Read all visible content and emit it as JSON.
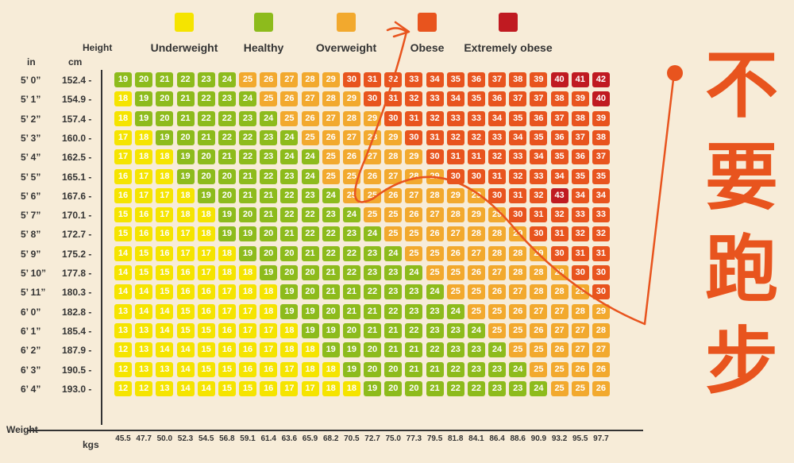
{
  "legend": [
    {
      "label": "Underweight",
      "color": "#f5e400"
    },
    {
      "label": "Healthy",
      "color": "#8dbb1c"
    },
    {
      "label": "Overweight",
      "color": "#f2a92e"
    },
    {
      "label": "Obese",
      "color": "#e8541e"
    },
    {
      "label": "Extremely obese",
      "color": "#c01a21"
    }
  ],
  "annotation_text": [
    "不",
    "要",
    "跑",
    "步"
  ],
  "annotation_color": "#e8541e",
  "chart_data": {
    "type": "heatmap",
    "title": "",
    "height_axis_label": "Height",
    "height_in_label": "in",
    "height_cm_label": "cm",
    "weight_axis_label": "Weight",
    "weight_kg_label": "kgs",
    "rows_in": [
      "5’ 0”",
      "5’ 1”",
      "5’ 2”",
      "5’ 3”",
      "5’ 4”",
      "5’ 5”",
      "5’ 6”",
      "5’ 7”",
      "5’ 8”",
      "5’ 9”",
      "5’ 10”",
      "5’ 11”",
      "6’ 0”",
      "6’ 1”",
      "6’ 2”",
      "6’ 3”",
      "6’ 4”"
    ],
    "rows_cm": [
      "152.4 -",
      "154.9 -",
      "157.4 -",
      "160.0 -",
      "162.5 -",
      "165.1 -",
      "167.6 -",
      "170.1 -",
      "172.7 -",
      "175.2 -",
      "177.8 -",
      "180.3 -",
      "182.8 -",
      "185.4 -",
      "187.9 -",
      "190.5 -",
      "193.0 -"
    ],
    "columns_kg": [
      "45.5",
      "47.7",
      "50.0",
      "52.3",
      "54.5",
      "56.8",
      "59.1",
      "61.4",
      "63.6",
      "65.9",
      "68.2",
      "70.5",
      "72.7",
      "75.0",
      "77.3",
      "79.5",
      "81.8",
      "84.1",
      "86.4",
      "88.6",
      "90.9",
      "93.2",
      "95.5",
      "97.7"
    ],
    "values": [
      [
        19,
        20,
        21,
        22,
        23,
        24,
        25,
        26,
        27,
        28,
        29,
        30,
        31,
        32,
        33,
        34,
        35,
        36,
        37,
        38,
        39,
        40,
        41,
        42
      ],
      [
        18,
        19,
        20,
        21,
        22,
        23,
        24,
        25,
        26,
        27,
        28,
        29,
        30,
        31,
        32,
        33,
        34,
        35,
        36,
        37,
        37,
        38,
        39,
        40
      ],
      [
        18,
        19,
        20,
        21,
        22,
        22,
        23,
        24,
        25,
        26,
        27,
        28,
        29,
        30,
        31,
        32,
        33,
        33,
        34,
        35,
        36,
        37,
        38,
        39
      ],
      [
        17,
        18,
        19,
        20,
        21,
        22,
        22,
        23,
        24,
        25,
        26,
        27,
        28,
        29,
        30,
        31,
        32,
        32,
        33,
        34,
        35,
        36,
        37,
        38
      ],
      [
        17,
        18,
        18,
        19,
        20,
        21,
        22,
        23,
        24,
        24,
        25,
        26,
        27,
        28,
        29,
        30,
        31,
        31,
        32,
        33,
        34,
        35,
        36,
        37
      ],
      [
        16,
        17,
        18,
        19,
        20,
        20,
        21,
        22,
        23,
        24,
        25,
        25,
        26,
        27,
        28,
        29,
        30,
        30,
        31,
        32,
        33,
        34,
        35,
        35
      ],
      [
        16,
        17,
        17,
        18,
        19,
        20,
        21,
        21,
        22,
        23,
        24,
        25,
        25,
        26,
        27,
        28,
        29,
        29,
        30,
        31,
        32,
        43,
        34,
        34
      ],
      [
        15,
        16,
        17,
        18,
        18,
        19,
        20,
        21,
        22,
        22,
        23,
        24,
        25,
        25,
        26,
        27,
        28,
        29,
        29,
        30,
        31,
        32,
        33,
        33
      ],
      [
        15,
        16,
        16,
        17,
        18,
        19,
        19,
        20,
        21,
        22,
        22,
        23,
        24,
        25,
        25,
        26,
        27,
        28,
        28,
        29,
        30,
        31,
        32,
        32
      ],
      [
        14,
        15,
        16,
        17,
        17,
        18,
        19,
        20,
        20,
        21,
        22,
        22,
        23,
        24,
        25,
        25,
        26,
        27,
        28,
        28,
        29,
        30,
        31,
        31
      ],
      [
        14,
        15,
        15,
        16,
        17,
        18,
        18,
        19,
        20,
        20,
        21,
        22,
        23,
        23,
        24,
        25,
        25,
        26,
        27,
        28,
        28,
        29,
        30,
        30
      ],
      [
        14,
        14,
        15,
        16,
        16,
        17,
        18,
        18,
        19,
        20,
        21,
        21,
        22,
        23,
        23,
        24,
        25,
        25,
        26,
        27,
        28,
        28,
        29,
        30
      ],
      [
        13,
        14,
        14,
        15,
        16,
        17,
        17,
        18,
        19,
        19,
        20,
        21,
        21,
        22,
        23,
        23,
        24,
        25,
        25,
        26,
        27,
        27,
        28,
        29
      ],
      [
        13,
        13,
        14,
        15,
        15,
        16,
        17,
        17,
        18,
        19,
        19,
        20,
        21,
        21,
        22,
        23,
        23,
        24,
        25,
        25,
        26,
        27,
        27,
        28
      ],
      [
        12,
        13,
        14,
        14,
        15,
        16,
        16,
        17,
        18,
        18,
        19,
        19,
        20,
        21,
        21,
        22,
        23,
        23,
        24,
        25,
        25,
        26,
        27,
        27
      ],
      [
        12,
        13,
        13,
        14,
        15,
        15,
        16,
        16,
        17,
        18,
        18,
        19,
        20,
        20,
        21,
        21,
        22,
        23,
        23,
        24,
        25,
        25,
        26,
        26
      ],
      [
        12,
        12,
        13,
        14,
        14,
        15,
        15,
        16,
        17,
        17,
        18,
        18,
        19,
        20,
        20,
        21,
        22,
        22,
        23,
        23,
        24,
        25,
        25,
        26
      ]
    ],
    "categories": [
      {
        "label": "Underweight",
        "range": [
          null,
          18.5
        ],
        "color": "#f5e400"
      },
      {
        "label": "Healthy",
        "range": [
          18.5,
          25
        ],
        "color": "#8dbb1c"
      },
      {
        "label": "Overweight",
        "range": [
          25,
          30
        ],
        "color": "#f2a92e"
      },
      {
        "label": "Obese",
        "range": [
          30,
          40
        ],
        "color": "#e8541e"
      },
      {
        "label": "Extremely obese",
        "range": [
          40,
          null
        ],
        "color": "#c01a21"
      }
    ]
  }
}
